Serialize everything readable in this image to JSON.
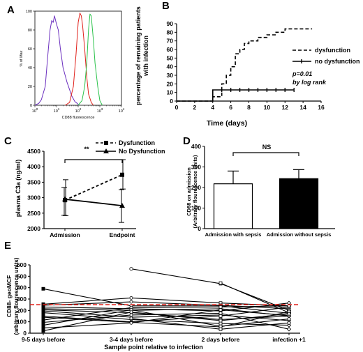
{
  "panels": {
    "a": {
      "label": "A"
    },
    "b": {
      "label": "B"
    },
    "c": {
      "label": "C"
    },
    "d": {
      "label": "D"
    },
    "e": {
      "label": "E"
    }
  },
  "colors": {
    "purple": "#6b2fbf",
    "red": "#e0201a",
    "green": "#2ac24a",
    "threshold": "#e0201a"
  },
  "chart_data": [
    {
      "panel": "A",
      "type": "line",
      "xlabel": "CD88 fluorescence",
      "ylabel": "% of Max",
      "x_scale": "log",
      "xlim": [
        1,
        10000
      ],
      "ylim": [
        0,
        100
      ],
      "x_ticks": [
        "10^0",
        "10^1",
        "10^2",
        "10^3",
        "10^4"
      ],
      "y_ticks": [
        "0",
        "20",
        "40",
        "60",
        "80",
        "100"
      ],
      "series": [
        {
          "color": "#6b2fbf",
          "x": [
            1,
            1.5,
            2,
            3,
            4,
            5,
            6,
            7,
            8,
            10,
            12,
            15,
            20,
            30,
            50,
            70,
            90,
            110
          ],
          "y": [
            0,
            2,
            6,
            20,
            55,
            80,
            90,
            88,
            95,
            86,
            80,
            60,
            40,
            25,
            10,
            4,
            2,
            0
          ]
        },
        {
          "color": "#e0201a",
          "x": [
            25,
            40,
            60,
            80,
            100,
            120,
            140,
            160,
            200,
            250,
            300,
            400,
            500
          ],
          "y": [
            0,
            3,
            20,
            55,
            88,
            98,
            95,
            85,
            60,
            30,
            12,
            3,
            0
          ]
        },
        {
          "color": "#2ac24a",
          "x": [
            100,
            150,
            200,
            250,
            300,
            350,
            400,
            500,
            600,
            800,
            1000,
            1300
          ],
          "y": [
            0,
            5,
            20,
            45,
            80,
            97,
            95,
            70,
            45,
            20,
            5,
            0
          ]
        }
      ]
    },
    {
      "panel": "B",
      "type": "line",
      "xlabel": "Time (days)",
      "ylabel": "percentage of remaining patients with infection",
      "xlim": [
        0,
        16
      ],
      "ylim": [
        0,
        90
      ],
      "x_ticks": [
        "0",
        "2",
        "4",
        "6",
        "8",
        "10",
        "12",
        "14",
        "16"
      ],
      "y_ticks": [
        "0",
        "10",
        "20",
        "30",
        "40",
        "50",
        "60",
        "70",
        "80",
        "90"
      ],
      "series": [
        {
          "name": "dysfunction",
          "style": "dashed",
          "x": [
            0,
            4,
            4,
            5,
            5,
            5.5,
            5.5,
            6,
            6,
            6.5,
            6.5,
            7,
            7,
            7.5,
            7.5,
            8,
            8,
            9,
            9,
            10,
            10,
            11,
            11,
            12,
            12,
            15
          ],
          "y": [
            0,
            0,
            5,
            5,
            20,
            20,
            30,
            30,
            40,
            40,
            55,
            55,
            60,
            60,
            67,
            67,
            70,
            70,
            74,
            74,
            77,
            77,
            80,
            80,
            84,
            84
          ]
        },
        {
          "name": "no dysfunction",
          "style": "solid",
          "x": [
            0,
            4,
            4,
            13
          ],
          "y": [
            0,
            0,
            13,
            13
          ],
          "censor_x": [
            5,
            6,
            7,
            8,
            9,
            10,
            11,
            12,
            13
          ]
        }
      ],
      "annotation": [
        "p=0.01",
        "by log rank"
      ]
    },
    {
      "panel": "C",
      "type": "line",
      "ylabel": "plasma C3a (ng/ml)",
      "categories": [
        "Admission",
        "Endpoint"
      ],
      "ylim": [
        2000,
        4500
      ],
      "y_ticks": [
        "2000",
        "2500",
        "3000",
        "3500",
        "4000",
        "4500"
      ],
      "series": [
        {
          "name": "Dysfunction",
          "style": "dashed",
          "values": [
            2920,
            3740
          ],
          "err_low": [
            2420,
            3280
          ],
          "err_high": [
            3580,
            4230
          ]
        },
        {
          "name": "No Dysfunction",
          "style": "solid",
          "values": [
            2950,
            2740
          ],
          "err_low": [
            2430,
            2200
          ],
          "err_high": [
            3330,
            3260
          ]
        }
      ],
      "annotation": "**"
    },
    {
      "panel": "D",
      "type": "bar",
      "ylabel": "CD88 on admission (Arbitrary flourescence units)",
      "categories": [
        "Admission with sepsis",
        "Admission without sepsis"
      ],
      "values": [
        218,
        243
      ],
      "err_high": [
        280,
        287
      ],
      "ylim": [
        0,
        400
      ],
      "y_ticks": [
        "0",
        "100",
        "200",
        "300",
        "400"
      ],
      "fills": [
        "#ffffff",
        "#000000"
      ],
      "annotation": "NS"
    },
    {
      "panel": "E",
      "type": "line",
      "xlabel": "Sample point relative to infection",
      "ylabel": "CD88- geoMCF (arbitrary flourescence units)",
      "categories": [
        "9-5 days before",
        "3-4 days before",
        "2 days before",
        "infection +1"
      ],
      "ylim": [
        0,
        600
      ],
      "y_ticks": [
        "0",
        "100",
        "200",
        "300",
        "400",
        "500",
        "600"
      ],
      "threshold": 250,
      "series": [
        {
          "values": [
            null,
            565,
            435,
            200
          ]
        },
        {
          "values": [
            null,
            null,
            440,
            180
          ]
        },
        {
          "values": [
            390,
            240,
            240,
            175
          ]
        },
        {
          "values": [
            255,
            310,
            265,
            240
          ]
        },
        {
          "values": [
            245,
            275,
            245,
            215
          ]
        },
        {
          "values": [
            230,
            215,
            195,
            265
          ]
        },
        {
          "values": [
            215,
            200,
            215,
            150
          ]
        },
        {
          "values": [
            205,
            180,
            120,
            150
          ]
        },
        {
          "values": [
            195,
            140,
            160,
            110
          ]
        },
        {
          "values": [
            180,
            120,
            85,
            70
          ]
        },
        {
          "values": [
            150,
            100,
            150,
            230
          ]
        },
        {
          "values": [
            140,
            95,
            55,
            190
          ]
        },
        {
          "values": [
            115,
            225,
            230,
            240
          ]
        },
        {
          "values": [
            95,
            160,
            175,
            35
          ]
        },
        {
          "values": [
            70,
            205,
            60,
            125
          ]
        },
        {
          "values": [
            45,
            90,
            205,
            155
          ]
        },
        {
          "values": [
            20,
            185,
            110,
            170
          ]
        },
        {
          "values": [
            null,
            130,
            35,
            90
          ]
        }
      ]
    }
  ]
}
